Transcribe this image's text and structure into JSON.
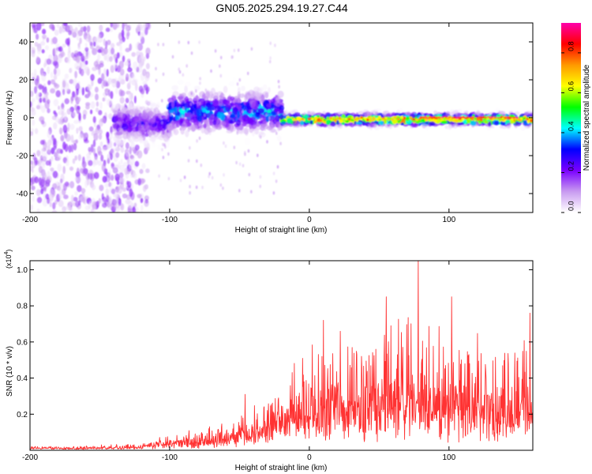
{
  "title": "GN05.2025.294.19.27.C44",
  "chart_data": [
    {
      "type": "heatmap",
      "name": "spectrogram",
      "xlabel": "Height of straight line (km)",
      "ylabel": "Frequency (Hz)",
      "xlim": [
        -200,
        160
      ],
      "ylim": [
        -50,
        50
      ],
      "x_ticks": [
        -200,
        -100,
        0,
        100
      ],
      "y_ticks": [
        -40,
        -20,
        0,
        20,
        40
      ],
      "colorbar": {
        "label": "Normalized spectral amplitude",
        "range": [
          0,
          0.95
        ],
        "ticks": [
          "0.0",
          "0.2",
          "0.4",
          "0.6",
          "0.8"
        ],
        "tick_values": [
          0,
          0.2,
          0.4,
          0.6,
          0.8
        ],
        "colors": [
          "#ffffff",
          "#c89af0",
          "#7a00ff",
          "#0000ff",
          "#00ffff",
          "#00ff00",
          "#ffff00",
          "#ff9900",
          "#ff0000",
          "#ff00aa"
        ]
      },
      "regions": [
        {
          "x_range": [
            -200,
            -115
          ],
          "freq_center": 0,
          "freq_spread": 50,
          "amplitude": 0.1,
          "description": "noise"
        },
        {
          "x_range": [
            -140,
            -100
          ],
          "freq_center": -3,
          "freq_spread": 8,
          "amplitude": 0.2
        },
        {
          "x_range": [
            -100,
            -20
          ],
          "freq_center": 3,
          "freq_spread": 10,
          "amplitude": 0.3
        },
        {
          "x_range": [
            -20,
            160
          ],
          "freq_center": -1,
          "freq_spread": 3,
          "amplitude": 0.55
        }
      ],
      "peak_line": {
        "x_range": [
          80,
          150
        ],
        "freq": 0,
        "amplitude": 0.9
      }
    },
    {
      "type": "line",
      "name": "snr",
      "xlabel": "Height of straight line (km)",
      "ylabel": "SNR (10 * v/v)",
      "y_multiplier": "(x10",
      "y_multiplier_exp": "4",
      "y_multiplier_close": ")",
      "xlim": [
        -200,
        160
      ],
      "ylim": [
        0,
        1.05
      ],
      "x_ticks": [
        -200,
        -100,
        0,
        100
      ],
      "y_ticks": [
        "0.2",
        "0.4",
        "0.6",
        "0.8",
        "1.0"
      ],
      "y_tick_values": [
        0.2,
        0.4,
        0.6,
        0.8,
        1.0
      ],
      "color": "#ff3333",
      "envelope": {
        "x": [
          -200,
          -150,
          -130,
          -120,
          -100,
          -80,
          -60,
          -45,
          -30,
          -20,
          -10,
          0,
          20,
          40,
          60,
          75,
          80,
          100,
          120,
          140,
          160
        ],
        "base": [
          0.01,
          0.012,
          0.015,
          0.02,
          0.04,
          0.05,
          0.06,
          0.08,
          0.1,
          0.14,
          0.16,
          0.18,
          0.2,
          0.2,
          0.22,
          0.24,
          0.22,
          0.2,
          0.18,
          0.16,
          0.2
        ],
        "amp": [
          0.015,
          0.02,
          0.025,
          0.03,
          0.05,
          0.09,
          0.1,
          0.15,
          0.22,
          0.3,
          0.38,
          0.45,
          0.5,
          0.5,
          0.55,
          0.6,
          0.55,
          0.5,
          0.5,
          0.45,
          0.45
        ]
      },
      "peaks": [
        {
          "x": 78,
          "y": 1.05
        },
        {
          "x": 55,
          "y": 0.85
        },
        {
          "x": 102,
          "y": 0.85
        },
        {
          "x": 158,
          "y": 0.76
        },
        {
          "x": 10,
          "y": 0.72
        },
        {
          "x": -46,
          "y": 0.31
        }
      ]
    }
  ]
}
